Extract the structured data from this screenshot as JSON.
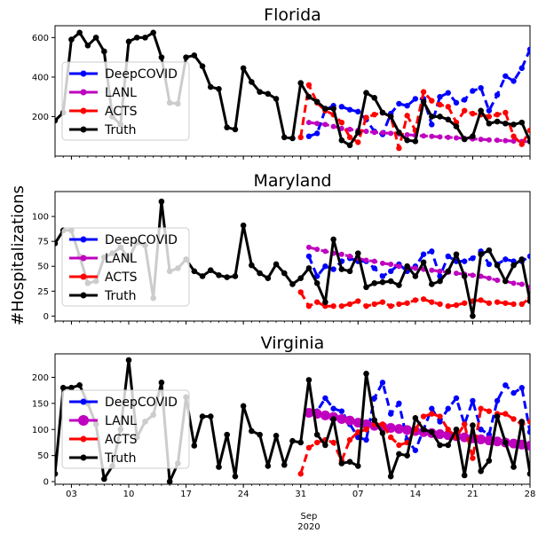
{
  "figure": {
    "ylabel": "#Hospitalizations",
    "xlabel_month": "Sep",
    "xlabel_year": "2020"
  },
  "x_ticks": [
    {
      "day": 3,
      "label": "03"
    },
    {
      "day": 10,
      "label": "10"
    },
    {
      "day": 17,
      "label": "17"
    },
    {
      "day": 24,
      "label": "24"
    },
    {
      "day": 31,
      "label": "31"
    },
    {
      "day": 38,
      "label": "07"
    },
    {
      "day": 45,
      "label": "14"
    },
    {
      "day": 52,
      "label": "21"
    },
    {
      "day": 59,
      "label": "28"
    }
  ],
  "legend": [
    "DeepCOVID",
    "LANL",
    "ACTS",
    "Truth"
  ],
  "colors": {
    "DeepCOVID": "#0000ff",
    "LANL": "#bf00bf",
    "ACTS": "#ff0000",
    "Truth": "#000000"
  },
  "chart_data": [
    {
      "type": "line",
      "title": "Florida",
      "xlim": [
        1,
        59
      ],
      "ylim": [
        0,
        660
      ],
      "yticks": [
        200,
        400,
        600
      ],
      "x_unit": "day (Aug 2020 = 1–31, Sep 2020 = 32–59)",
      "truth": {
        "x": [
          1,
          2,
          3,
          4,
          5,
          6,
          7,
          8,
          9,
          10,
          11,
          12,
          13,
          14,
          15,
          16,
          17,
          18,
          19,
          20,
          21,
          22,
          23,
          24,
          25,
          26,
          27,
          28,
          29,
          30,
          31,
          32,
          33,
          34,
          35,
          36,
          37,
          38,
          39,
          40,
          41,
          42,
          43,
          44,
          45,
          46,
          47,
          48,
          49,
          50,
          51,
          52,
          53,
          54,
          55,
          56,
          57,
          58,
          59
        ],
        "y": [
          180,
          220,
          590,
          625,
          560,
          600,
          530,
          200,
          160,
          580,
          600,
          600,
          625,
          500,
          270,
          265,
          500,
          510,
          455,
          350,
          340,
          145,
          135,
          445,
          375,
          325,
          315,
          290,
          95,
          90,
          370,
          300,
          275,
          240,
          240,
          80,
          55,
          120,
          320,
          295,
          220,
          200,
          120,
          80,
          75,
          275,
          200,
          200,
          185,
          150,
          85,
          100,
          230,
          165,
          175,
          165,
          160,
          170,
          75
        ]
      },
      "series": [
        {
          "name": "DeepCOVID",
          "x": [
            32,
            33,
            34,
            35,
            36,
            37,
            38,
            39,
            40,
            41,
            42,
            43,
            44,
            45,
            46,
            47,
            48,
            49,
            50,
            51,
            52,
            53,
            54,
            55,
            56,
            57,
            58,
            59
          ],
          "y": [
            100,
            115,
            235,
            255,
            250,
            235,
            225,
            185,
            125,
            110,
            215,
            265,
            255,
            290,
            290,
            160,
            300,
            320,
            270,
            285,
            330,
            345,
            230,
            310,
            405,
            380,
            445,
            540
          ]
        },
        {
          "name": "LANL",
          "x": [
            32,
            33,
            34,
            35,
            36,
            37,
            38,
            39,
            40,
            41,
            42,
            43,
            44,
            45,
            46,
            47,
            48,
            49,
            50,
            51,
            52,
            53,
            54,
            55,
            56,
            57,
            58,
            59
          ],
          "y": [
            170,
            165,
            160,
            150,
            140,
            135,
            130,
            125,
            120,
            118,
            115,
            112,
            108,
            105,
            102,
            100,
            97,
            95,
            92,
            90,
            87,
            85,
            82,
            80,
            78,
            76,
            74,
            72
          ]
        },
        {
          "name": "ACTS",
          "x": [
            31,
            32,
            33,
            34,
            35,
            36,
            37,
            38,
            39,
            40,
            41,
            42,
            43,
            44,
            45,
            46,
            47,
            48,
            49,
            50,
            51,
            52,
            53,
            54,
            55,
            56,
            57,
            58,
            59
          ],
          "y": [
            95,
            360,
            270,
            230,
            210,
            170,
            95,
            70,
            195,
            210,
            220,
            200,
            40,
            205,
            130,
            325,
            280,
            260,
            250,
            170,
            230,
            215,
            210,
            200,
            210,
            220,
            100,
            60,
            130
          ]
        }
      ]
    },
    {
      "type": "line",
      "title": "Maryland",
      "xlim": [
        1,
        59
      ],
      "ylim": [
        -5,
        125
      ],
      "yticks": [
        0,
        25,
        50,
        75,
        100
      ],
      "x_unit": "day (Aug 2020 = 1–31, Sep 2020 = 32–59)",
      "truth": {
        "x": [
          1,
          2,
          3,
          4,
          5,
          6,
          7,
          8,
          9,
          10,
          11,
          12,
          13,
          14,
          15,
          16,
          17,
          18,
          19,
          20,
          21,
          22,
          23,
          24,
          25,
          26,
          27,
          28,
          29,
          30,
          31,
          32,
          33,
          34,
          35,
          36,
          37,
          38,
          39,
          40,
          41,
          42,
          43,
          44,
          45,
          46,
          47,
          48,
          49,
          50,
          51,
          52,
          53,
          54,
          55,
          56,
          57,
          58,
          59
        ],
        "y": [
          73,
          86,
          86,
          60,
          33,
          35,
          59,
          63,
          69,
          58,
          74,
          71,
          18,
          115,
          45,
          48,
          57,
          45,
          40,
          46,
          41,
          39,
          40,
          91,
          51,
          43,
          38,
          52,
          43,
          32,
          38,
          48,
          33,
          14,
          77,
          47,
          45,
          63,
          29,
          33,
          34,
          35,
          31,
          50,
          40,
          54,
          32,
          35,
          45,
          62,
          40,
          0,
          62,
          66,
          51,
          35,
          51,
          57,
          15
        ]
      },
      "series": [
        {
          "name": "DeepCOVID",
          "x": [
            32,
            33,
            34,
            35,
            36,
            37,
            38,
            39,
            40,
            41,
            42,
            43,
            44,
            45,
            46,
            47,
            48,
            49,
            50,
            51,
            52,
            53,
            54,
            55,
            56,
            57,
            58,
            59
          ],
          "y": [
            60,
            40,
            50,
            47,
            55,
            58,
            55,
            55,
            48,
            40,
            45,
            52,
            45,
            50,
            62,
            65,
            40,
            60,
            55,
            55,
            58,
            65,
            52,
            52,
            57,
            55,
            55,
            60
          ]
        },
        {
          "name": "LANL",
          "x": [
            32,
            33,
            34,
            35,
            36,
            37,
            38,
            39,
            40,
            41,
            42,
            43,
            44,
            45,
            46,
            47,
            48,
            49,
            50,
            51,
            52,
            53,
            54,
            55,
            56,
            57,
            58,
            59
          ],
          "y": [
            69,
            67,
            65,
            63,
            62,
            60,
            58,
            56,
            55,
            53,
            52,
            50,
            49,
            48,
            47,
            46,
            45,
            44,
            43,
            42,
            41,
            40,
            38,
            36,
            35,
            33,
            32,
            29
          ]
        },
        {
          "name": "ACTS",
          "x": [
            31,
            32,
            33,
            34,
            35,
            36,
            37,
            38,
            39,
            40,
            41,
            42,
            43,
            44,
            45,
            46,
            47,
            48,
            49,
            50,
            51,
            52,
            53,
            54,
            55,
            56,
            57,
            58,
            59
          ],
          "y": [
            24,
            10,
            14,
            10,
            10,
            10,
            12,
            15,
            10,
            12,
            14,
            10,
            12,
            13,
            16,
            17,
            14,
            12,
            10,
            11,
            13,
            15,
            16,
            13,
            14,
            13,
            12,
            12,
            18
          ]
        }
      ]
    },
    {
      "type": "line",
      "title": "Virginia",
      "xlim": [
        1,
        59
      ],
      "ylim": [
        -5,
        245
      ],
      "yticks": [
        0,
        50,
        100,
        150,
        200
      ],
      "x_unit": "day (Aug 2020 = 1–31, Sep 2020 = 32–59)",
      "truth": {
        "x": [
          1,
          2,
          3,
          4,
          5,
          6,
          7,
          8,
          9,
          10,
          11,
          12,
          13,
          14,
          15,
          16,
          17,
          18,
          19,
          20,
          21,
          22,
          23,
          24,
          25,
          26,
          27,
          28,
          29,
          30,
          31,
          32,
          33,
          34,
          35,
          36,
          37,
          38,
          39,
          40,
          41,
          42,
          43,
          44,
          45,
          46,
          47,
          48,
          49,
          50,
          51,
          52,
          53,
          54,
          55,
          56,
          57,
          58,
          59
        ],
        "y": [
          15,
          180,
          180,
          185,
          150,
          110,
          5,
          30,
          100,
          233,
          85,
          115,
          128,
          190,
          0,
          35,
          162,
          69,
          125,
          125,
          28,
          90,
          10,
          145,
          97,
          90,
          30,
          88,
          32,
          78,
          75,
          195,
          90,
          70,
          120,
          35,
          38,
          30,
          207,
          118,
          93,
          10,
          53,
          50,
          122,
          100,
          95,
          70,
          70,
          100,
          12,
          108,
          20,
          40,
          125,
          75,
          28,
          115,
          15
        ]
      },
      "series": [
        {
          "name": "DeepCOVID",
          "x": [
            32,
            33,
            34,
            35,
            36,
            37,
            38,
            39,
            40,
            41,
            42,
            43,
            44,
            45,
            46,
            47,
            48,
            49,
            50,
            51,
            52,
            53,
            54,
            55,
            56,
            57,
            58,
            59
          ],
          "y": [
            130,
            135,
            160,
            140,
            135,
            110,
            85,
            80,
            160,
            190,
            130,
            150,
            80,
            60,
            100,
            140,
            115,
            140,
            160,
            110,
            155,
            100,
            90,
            155,
            185,
            170,
            180,
            95
          ]
        },
        {
          "name": "LANL",
          "x": [
            32,
            33,
            34,
            35,
            36,
            37,
            38,
            39,
            40,
            41,
            42,
            43,
            44,
            45,
            46,
            47,
            48,
            49,
            50,
            51,
            52,
            53,
            54,
            55,
            56,
            57,
            58,
            59
          ],
          "y": [
            132,
            130,
            127,
            124,
            120,
            117,
            113,
            110,
            107,
            105,
            103,
            101,
            99,
            97,
            95,
            93,
            91,
            89,
            87,
            85,
            83,
            81,
            79,
            77,
            75,
            73,
            71,
            69
          ]
        },
        {
          "name": "ACTS",
          "x": [
            31,
            32,
            33,
            34,
            35,
            36,
            37,
            38,
            39,
            40,
            41,
            42,
            43,
            44,
            45,
            46,
            47,
            48,
            49,
            50,
            51,
            52,
            53,
            54,
            55,
            56,
            57,
            58,
            59
          ],
          "y": [
            15,
            65,
            75,
            80,
            75,
            40,
            80,
            95,
            100,
            110,
            110,
            85,
            70,
            75,
            100,
            125,
            130,
            125,
            100,
            85,
            110,
            45,
            140,
            135,
            130,
            130,
            120,
            110,
            115
          ]
        }
      ]
    }
  ]
}
